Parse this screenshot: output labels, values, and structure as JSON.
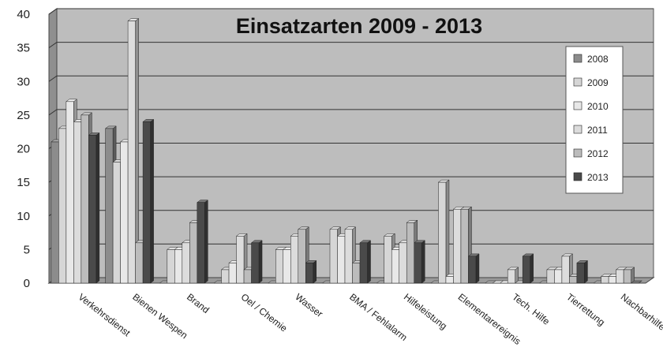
{
  "chart_data": {
    "type": "bar",
    "title": "Einsatzarten 2009 - 2013",
    "xlabel": "",
    "ylabel": "",
    "ylim": [
      0,
      40
    ],
    "yticks": [
      0,
      5,
      10,
      15,
      20,
      25,
      30,
      35,
      40
    ],
    "grid": true,
    "legend_position": "right",
    "categories": [
      "Verkehrsdienst",
      "Bienen Wespen",
      "Brand",
      "Oel / Chemie",
      "Wasser",
      "BMA / Fehlalarm",
      "Hilfeleistung",
      "Elementarereignis",
      "Tech. Hilfe",
      "Tierrettung",
      "Nachbarhilfe"
    ],
    "series": [
      {
        "name": "2008",
        "color": "#8c8c8c",
        "values": [
          21,
          23,
          0,
          0,
          0,
          0,
          0,
          0,
          0,
          0,
          0
        ]
      },
      {
        "name": "2009",
        "color": "#d6d6d6",
        "values": [
          23,
          18,
          5,
          2,
          5,
          8,
          7,
          15,
          0,
          2,
          1
        ]
      },
      {
        "name": "2010",
        "color": "#e8e8e8",
        "values": [
          27,
          21,
          5,
          3,
          5,
          7,
          5,
          1,
          0,
          2,
          1
        ]
      },
      {
        "name": "2011",
        "color": "#dcdcdc",
        "values": [
          24,
          39,
          6,
          7,
          7,
          8,
          6,
          11,
          2,
          4,
          2
        ]
      },
      {
        "name": "2012",
        "color": "#bcbcbc",
        "values": [
          25,
          6,
          9,
          2,
          8,
          3,
          9,
          11,
          0,
          1,
          2
        ]
      },
      {
        "name": "2013",
        "color": "#4a4a4a",
        "values": [
          22,
          24,
          12,
          6,
          3,
          6,
          6,
          4,
          4,
          3,
          0
        ]
      }
    ]
  }
}
